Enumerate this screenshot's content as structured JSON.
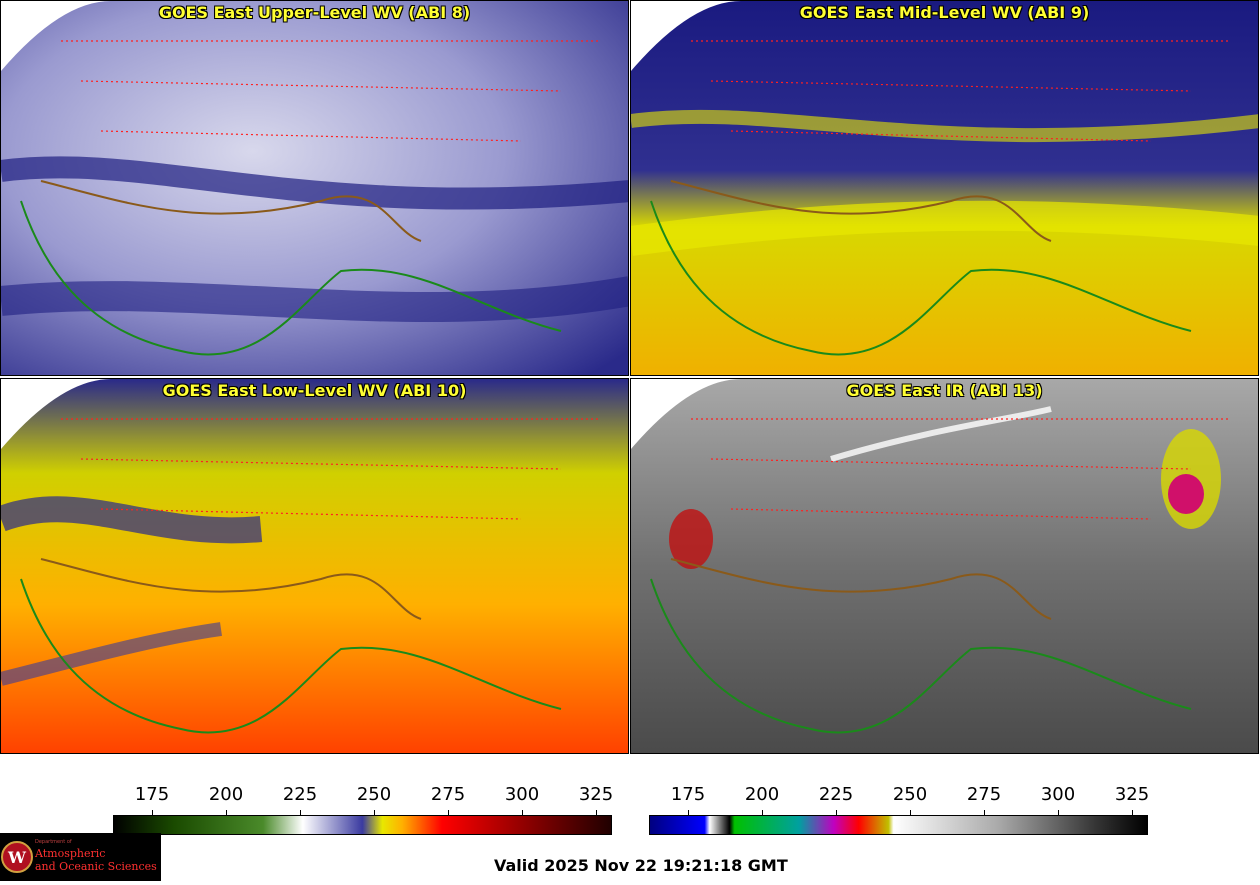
{
  "panels": [
    {
      "title": "GOES East Upper-Level WV (ABI 8)"
    },
    {
      "title": "GOES East Mid-Level WV (ABI 9)"
    },
    {
      "title": "GOES East Low-Level WV (ABI 10)"
    },
    {
      "title": "GOES East IR (ABI 13)"
    }
  ],
  "colorbars": {
    "ticks": [
      "175",
      "200",
      "225",
      "250",
      "275",
      "300",
      "325"
    ]
  },
  "logo": {
    "small": "Department of",
    "line1": "Atmospheric",
    "line2": "and Oceanic Sciences",
    "emblem": "W"
  },
  "valid_time": "Valid 2025 Nov 22 19:21:18 GMT",
  "colors": {
    "state_lines": "#ff2020",
    "coast_lines": "#1a8a1a",
    "title_text": "#ffff33"
  }
}
